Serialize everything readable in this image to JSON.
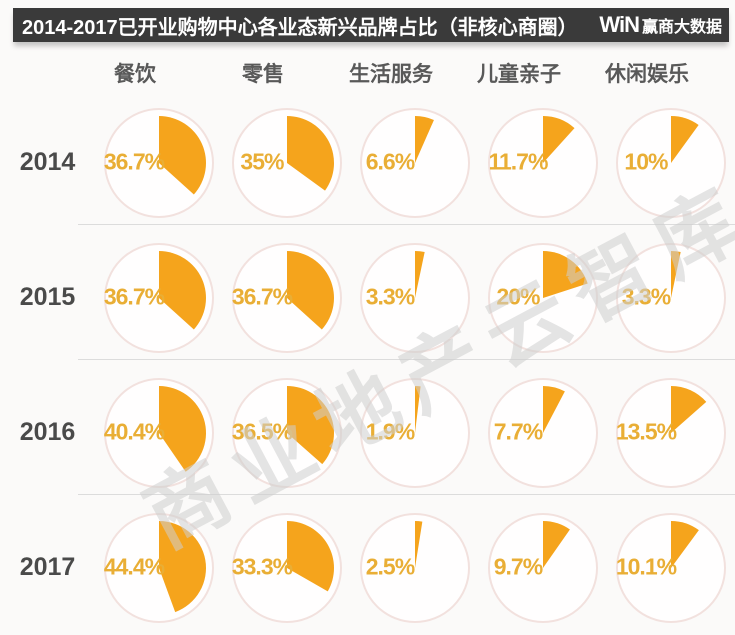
{
  "header": {
    "title": "2014-2017已开业购物中心各业态新兴品牌占比（非核心商圈）",
    "logo_win": "WiN",
    "logo_text": "赢商大数据"
  },
  "watermark": "商业地产云智库",
  "chart_data": {
    "type": "pie",
    "layout": "grid-of-pies: rows are years, columns are business categories, each cell is a single-slice pie starting at 12 o'clock sweeping clockwise",
    "title": "2014-2017已开业购物中心各业态新兴品牌占比（非核心商圈）",
    "categories": [
      "餐饮",
      "零售",
      "生活服务",
      "儿童亲子",
      "休闲娱乐"
    ],
    "rows": [
      {
        "year": "2014",
        "labels": [
          "36.7%",
          "35%",
          "6.6%",
          "11.7%",
          "10%"
        ],
        "values": [
          36.7,
          35,
          6.6,
          11.7,
          10
        ]
      },
      {
        "year": "2015",
        "labels": [
          "36.7%",
          "36.7%",
          "3.3%",
          "20%",
          "3.3%"
        ],
        "values": [
          36.7,
          36.7,
          3.3,
          20,
          3.3
        ]
      },
      {
        "year": "2016",
        "labels": [
          "40.4%",
          "36.5%",
          "1.9%",
          "7.7%",
          "13.5%"
        ],
        "values": [
          40.4,
          36.5,
          1.9,
          7.7,
          13.5
        ]
      },
      {
        "year": "2017",
        "labels": [
          "44.4%",
          "33.3%",
          "2.5%",
          "9.7%",
          "10.1%"
        ],
        "values": [
          44.4,
          33.3,
          2.5,
          9.7,
          10.1
        ]
      }
    ],
    "colors": {
      "wedge": "#F5A41C",
      "value_label": "#E9AE35",
      "circle_fill": "#FFFEFE",
      "circle_border": "#F2E1DE",
      "title_bar_bg": "#3A3A3A",
      "title_text": "#FFFFFF",
      "year_text": "#4A4A4A",
      "category_text": "#595959",
      "watermark_text": "#CFCFCF"
    }
  }
}
